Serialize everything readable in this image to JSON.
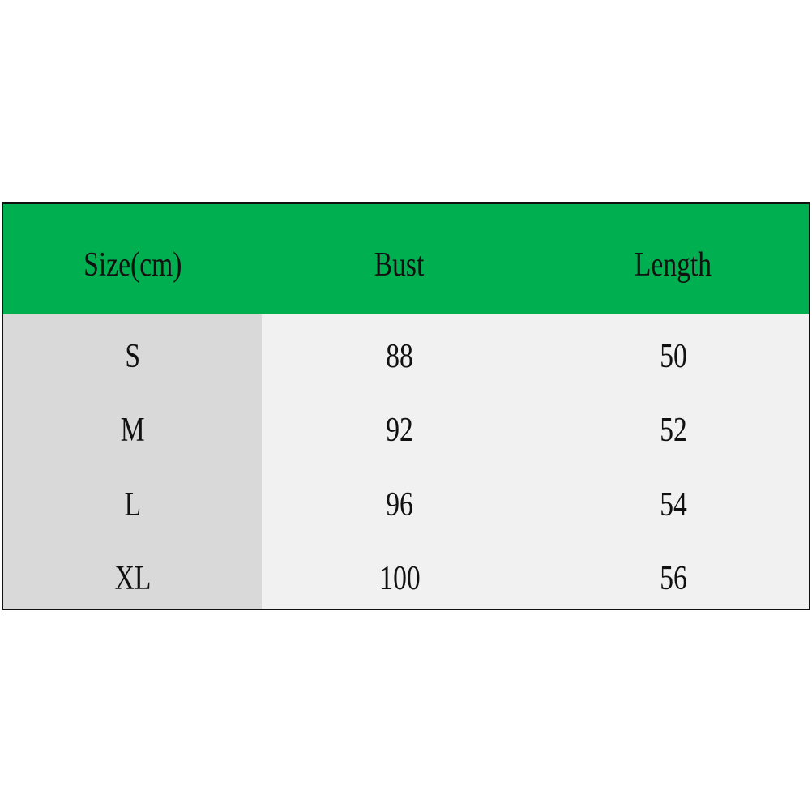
{
  "colors": {
    "header": "#00b050",
    "first_column": "#d9d9d9",
    "body": "#f1f1f1"
  },
  "table": {
    "headers": [
      "Size(cm)",
      "Bust",
      "Length"
    ],
    "rows": [
      [
        "S",
        "88",
        "50"
      ],
      [
        "M",
        "92",
        "52"
      ],
      [
        "L",
        "96",
        "54"
      ],
      [
        "XL",
        "100",
        "56"
      ]
    ]
  }
}
